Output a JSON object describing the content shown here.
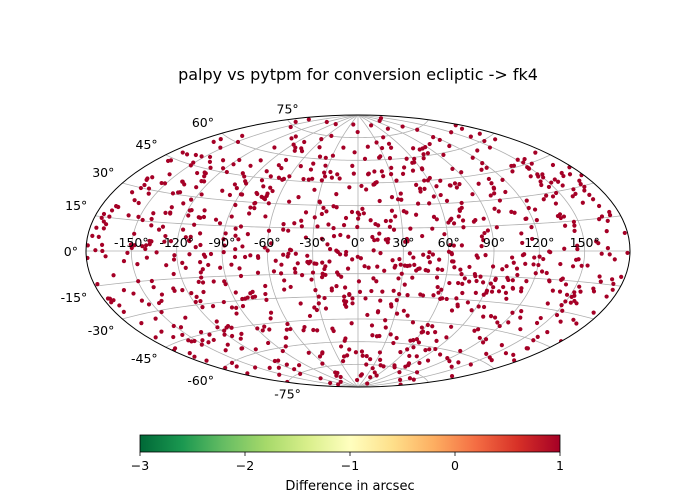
{
  "chart_data": {
    "type": "scatter",
    "projection": "aitoff",
    "title": "palpy vs pytpm for conversion ecliptic -> fk4",
    "xlabel": "",
    "ylabel": "",
    "grid": true,
    "x_ticks": [
      -150,
      -120,
      -90,
      -60,
      -30,
      0,
      30,
      60,
      90,
      120,
      150
    ],
    "x_tick_labels": [
      "-150°",
      "-120°",
      "-90°",
      "-60°",
      "-30°",
      "0°",
      "30°",
      "60°",
      "90°",
      "120°",
      "150°"
    ],
    "y_ticks": [
      75,
      60,
      45,
      30,
      15,
      0,
      -15,
      -30,
      -45,
      -60,
      -75
    ],
    "y_tick_labels": [
      "75°",
      "60°",
      "45°",
      "30°",
      "15°",
      "0°",
      "-15°",
      "-30°",
      "-45°",
      "-60°",
      "-75°"
    ],
    "xlim": [
      -180,
      180
    ],
    "ylim": [
      -90,
      90
    ],
    "marker_color": "#a50026",
    "colormap": "RdYlGn_r",
    "colorbar": {
      "label": "Difference in arcsec",
      "range": [
        -3,
        1
      ],
      "ticks": [
        -3,
        -2,
        -1,
        0,
        1
      ],
      "tick_labels": [
        "−3",
        "−2",
        "−1",
        "0",
        "1"
      ]
    },
    "point_count": 1000,
    "note_values": "All plotted points share the same color (difference ≈ 1 arcsec at top of colorbar); positions are uniformly distributed over the sky.",
    "points": []
  }
}
